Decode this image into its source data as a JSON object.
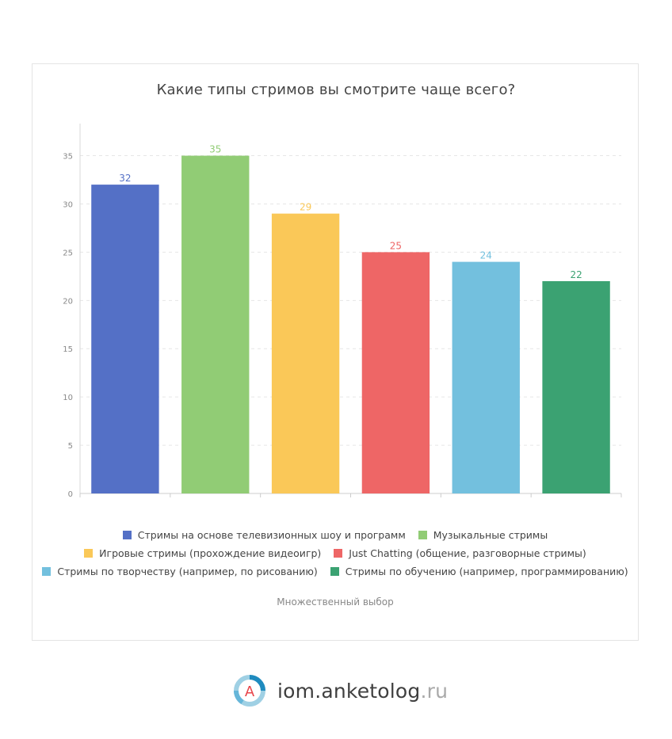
{
  "title": "Какие типы стримов вы смотрите чаще всего?",
  "note": "Множественный выбор",
  "brand": {
    "name": "iom.anketolog",
    "tld": ".ru",
    "logo_letter": "A"
  },
  "chart_data": {
    "type": "bar",
    "title": "Какие типы стримов вы смотрите чаще всего?",
    "categories": [
      "Стримы на основе телевизионных шоу и программ",
      "Музыкальные стримы",
      "Игровые стримы (прохождение видеоигр)",
      "Just Chatting (общение, разговорные стримы)",
      "Стримы по творчеству (например, по рисованию)",
      "Стримы по обучению (например, программированию)"
    ],
    "values": [
      32,
      35,
      29,
      25,
      24,
      22
    ],
    "colors": [
      "#5470c6",
      "#91cc75",
      "#fac858",
      "#ee6666",
      "#73c0de",
      "#3ba272"
    ],
    "label_colors": [
      "#5470c6",
      "#91cc75",
      "#fac858",
      "#ee6666",
      "#73c0de",
      "#3ba272"
    ],
    "ylim": [
      0,
      38
    ],
    "yticks": [
      0,
      5,
      10,
      15,
      20,
      25,
      30,
      35
    ],
    "grid": true,
    "legend_position": "bottom"
  }
}
